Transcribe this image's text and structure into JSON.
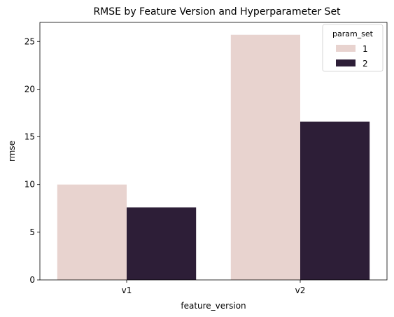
{
  "chart_data": {
    "type": "bar",
    "title": "RMSE by Feature Version and Hyperparameter Set",
    "xlabel": "feature_version",
    "ylabel": "rmse",
    "categories": [
      "v1",
      "v2"
    ],
    "series": [
      {
        "name": "1",
        "values": [
          10.0,
          25.7
        ],
        "color": "#e8d3cf"
      },
      {
        "name": "2",
        "values": [
          7.6,
          16.6
        ],
        "color": "#2d1e37"
      }
    ],
    "ylim": [
      0,
      27
    ],
    "yticks": [
      0,
      5,
      10,
      15,
      20,
      25
    ],
    "grid": false,
    "legend": {
      "title": "param_set",
      "placement": "top-right"
    }
  }
}
